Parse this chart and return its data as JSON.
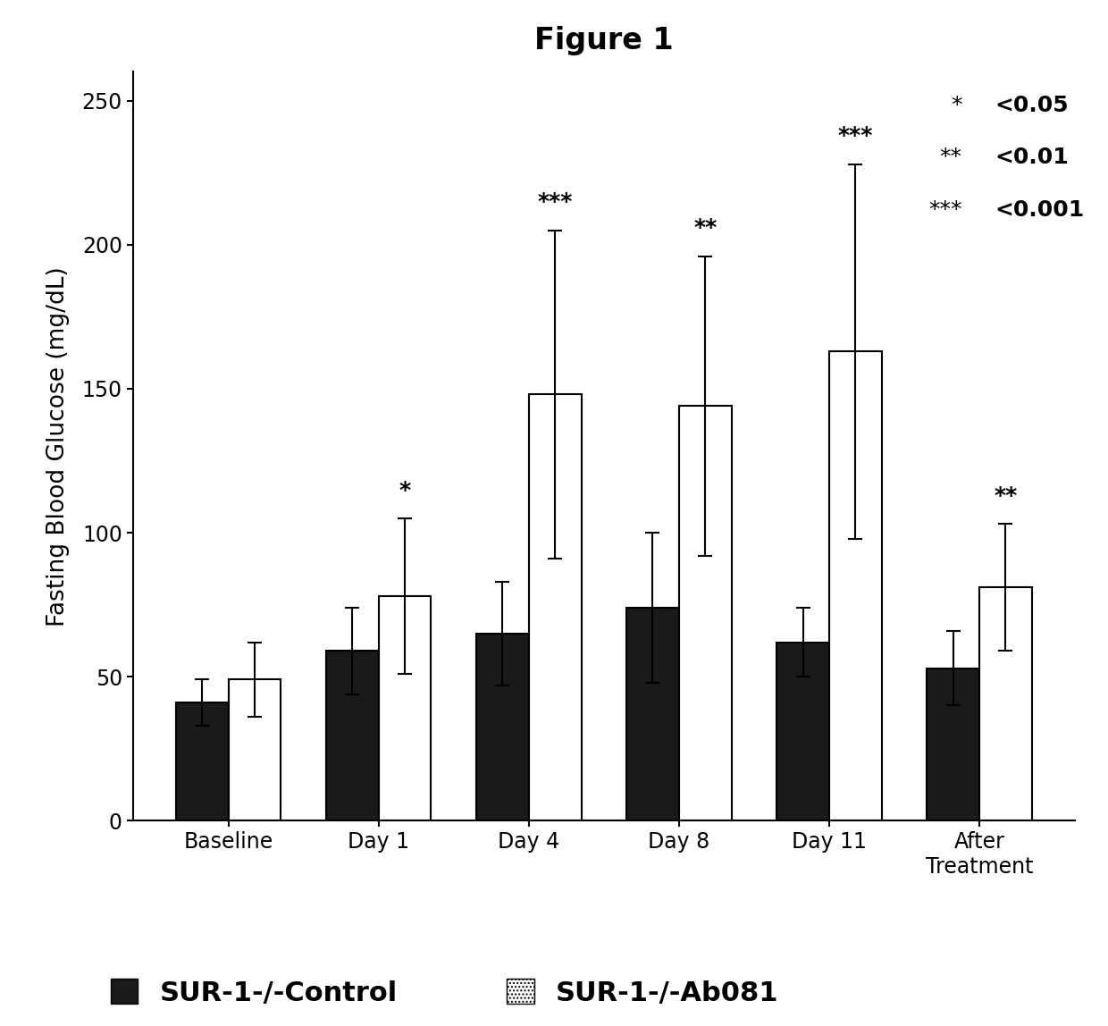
{
  "title": "Figure 1",
  "ylabel": "Fasting Blood Glucose (mg/dL)",
  "categories": [
    "Baseline",
    "Day 1",
    "Day 4",
    "Day 8",
    "Day 11",
    "After\nTreatment"
  ],
  "control_values": [
    41,
    59,
    65,
    74,
    62,
    53
  ],
  "control_errors": [
    8,
    15,
    18,
    26,
    12,
    13
  ],
  "ab081_values": [
    49,
    78,
    148,
    144,
    163,
    81
  ],
  "ab081_errors": [
    13,
    27,
    57,
    52,
    65,
    22
  ],
  "control_color": "#1a1a1a",
  "ab081_color": "#ffffff",
  "bar_edge_color": "#000000",
  "ylim": [
    0,
    260
  ],
  "yticks": [
    0,
    50,
    100,
    150,
    200,
    250
  ],
  "significance": [
    "",
    "*",
    "***",
    "**",
    "***",
    "**"
  ],
  "legend_control": "SUR-1-/-Control",
  "legend_ab081": "SUR-1-/-Ab081",
  "sig_legend_stars": [
    "*",
    "**",
    "***"
  ],
  "sig_legend_values": [
    "<0.05",
    "<0.01",
    "<0.001"
  ],
  "bar_width": 0.35,
  "title_fontsize": 24,
  "axis_fontsize": 19,
  "tick_fontsize": 17,
  "legend_fontsize": 22,
  "sig_bar_fontsize": 18,
  "sig_legend_fontsize": 18
}
